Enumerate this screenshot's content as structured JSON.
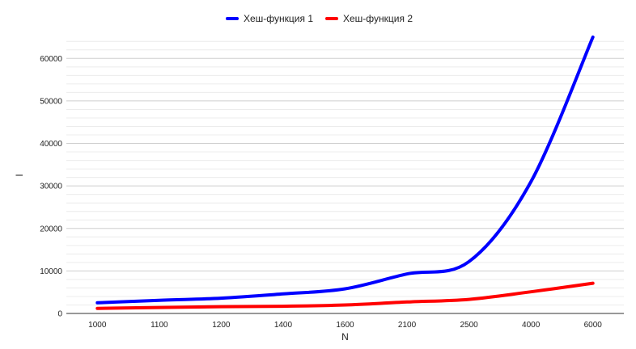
{
  "chart_data": {
    "type": "line",
    "title": "",
    "xlabel": "N",
    "ylabel": "I",
    "categories": [
      "1000",
      "1100",
      "1200",
      "1400",
      "1600",
      "2100",
      "2500",
      "4000",
      "6000"
    ],
    "series": [
      {
        "name": "Хеш-функция 1",
        "color": "#0000ff",
        "values": [
          2500,
          3100,
          3600,
          4600,
          5800,
          9300,
          12200,
          31000,
          65000
        ]
      },
      {
        "name": "Хеш-функция 2",
        "color": "#ff0000",
        "values": [
          1200,
          1400,
          1600,
          1700,
          2000,
          2700,
          3300,
          5100,
          7100
        ]
      }
    ],
    "ylim": [
      0,
      65000
    ],
    "yticks": [
      0,
      10000,
      20000,
      30000,
      40000,
      50000,
      60000
    ],
    "grid": true,
    "legend_position": "top-center"
  }
}
